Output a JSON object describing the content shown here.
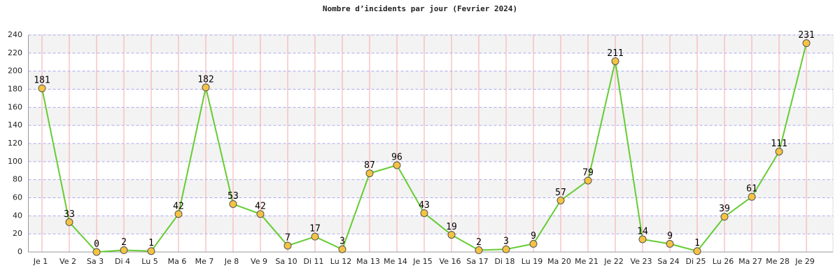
{
  "chart_data": {
    "type": "line",
    "title": "Nombre d’incidents par jour (Fevrier 2024)",
    "categories": [
      "Je 1",
      "Ve 2",
      "Sa 3",
      "Di 4",
      "Lu 5",
      "Ma 6",
      "Me 7",
      "Je 8",
      "Ve 9",
      "Sa 10",
      "Di 11",
      "Lu 12",
      "Ma 13",
      "Me 14",
      "Je 15",
      "Ve 16",
      "Sa 17",
      "Di 18",
      "Lu 19",
      "Ma 20",
      "Me 21",
      "Je 22",
      "Ve 23",
      "Sa 24",
      "Di 25",
      "Lu 26",
      "Ma 27",
      "Me 28",
      "Je 29"
    ],
    "values": [
      181,
      33,
      0,
      2,
      1,
      42,
      182,
      53,
      42,
      7,
      17,
      3,
      87,
      96,
      43,
      19,
      2,
      3,
      9,
      57,
      79,
      211,
      14,
      9,
      1,
      39,
      61,
      111,
      231
    ],
    "color": "#66cc33",
    "marker_color": "#f5c342",
    "ylim": [
      0,
      240
    ],
    "yticks": [
      0,
      20,
      40,
      60,
      80,
      100,
      120,
      140,
      160,
      180,
      200,
      220,
      240
    ],
    "grid": true
  }
}
